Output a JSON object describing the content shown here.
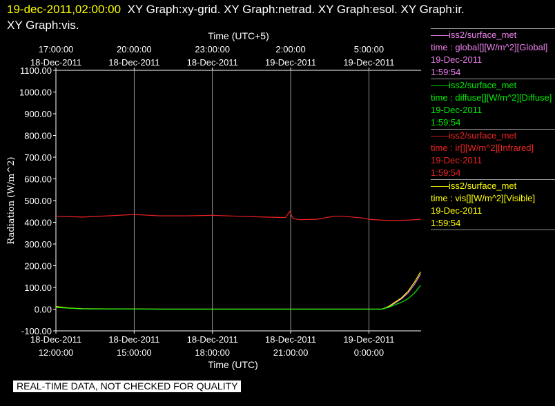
{
  "header": {
    "timestamp": "19-dec-2011,02:00:00",
    "title_line1": "XY Graph:xy-grid.  XY Graph:netrad.  XY Graph:esol.  XY Graph:ir.",
    "title_line2": "XY Graph:vis."
  },
  "legend": [
    {
      "source": "iss2/surface_met",
      "label": "time : global[][W/m^2][Global]",
      "date": "19-Dec-2011",
      "time": "1:59:54",
      "color": "#ee82ee"
    },
    {
      "source": "iss2/surface_met",
      "label": "time : diffuse[][W/m^2][Diffuse]",
      "date": "19-Dec-2011",
      "time": "1:59:54",
      "color": "#00ee00"
    },
    {
      "source": "iss2/surface_met",
      "label": "time : ir[][W/m^2][Infrared]",
      "date": "19-Dec-2011",
      "time": "1:59:54",
      "color": "#ee2222"
    },
    {
      "source": "iss2/surface_met",
      "label": "time : vis[][W/m^2][Visible]",
      "date": "19-Dec-2011",
      "time": "1:59:54",
      "color": "#ffff00"
    }
  ],
  "notice": "REAL-TIME DATA, NOT CHECKED FOR QUALITY",
  "chart_data": {
    "type": "line",
    "xlabel": "Time (UTC)",
    "x2label": "Time (UTC+5)",
    "ylabel": "Radiation (W/m^2)",
    "ylim": [
      -100,
      1100
    ],
    "yticks": [
      -100,
      0,
      100,
      200,
      300,
      400,
      500,
      600,
      700,
      800,
      900,
      1000,
      1100
    ],
    "ytick_labels": [
      "-100.00",
      "0.00",
      "100.00",
      "200.00",
      "300.00",
      "400.00",
      "500.00",
      "600.00",
      "700.00",
      "800.00",
      "900.00",
      "1000.00",
      "1100.00"
    ],
    "xlim": [
      "2011-12-18 12:00",
      "2011-12-19 02:00"
    ],
    "xticks_bottom": [
      {
        "date": "18-Dec-2011",
        "time": "12:00:00"
      },
      {
        "date": "18-Dec-2011",
        "time": "15:00:00"
      },
      {
        "date": "18-Dec-2011",
        "time": "18:00:00"
      },
      {
        "date": "18-Dec-2011",
        "time": "21:00:00"
      },
      {
        "date": "19-Dec-2011",
        "time": "0:00:00"
      }
    ],
    "xticks_top": [
      {
        "time": "17:00:00",
        "date": "18-Dec-2011"
      },
      {
        "time": "20:00:00",
        "date": "18-Dec-2011"
      },
      {
        "time": "23:00:00",
        "date": "18-Dec-2011"
      },
      {
        "time": "2:00:00",
        "date": "19-Dec-2011"
      },
      {
        "time": "5:00:00",
        "date": "19-Dec-2011"
      }
    ],
    "grid": "vertical",
    "series": [
      {
        "name": "ir",
        "color": "#ee2222",
        "x": [
          "2011-12-18 12:00",
          "2011-12-18 13:00",
          "2011-12-18 14:00",
          "2011-12-18 15:00",
          "2011-12-18 16:00",
          "2011-12-18 17:00",
          "2011-12-18 18:00",
          "2011-12-18 19:00",
          "2011-12-18 20:00",
          "2011-12-18 20:48",
          "2011-12-18 20:58",
          "2011-12-18 21:05",
          "2011-12-18 21:20",
          "2011-12-18 22:00",
          "2011-12-18 22:40",
          "2011-12-18 23:00",
          "2011-12-18 23:45",
          "2011-12-19 00:00",
          "2011-12-19 00:30",
          "2011-12-19 01:00",
          "2011-12-19 01:30",
          "2011-12-19 01:59"
        ],
        "y": [
          428,
          424,
          430,
          436,
          430,
          430,
          432,
          428,
          424,
          422,
          450,
          418,
          412,
          414,
          428,
          428,
          420,
          414,
          410,
          408,
          410,
          414
        ]
      },
      {
        "name": "global",
        "color": "#ee82ee",
        "x": [
          "2011-12-18 12:00",
          "2011-12-18 12:30",
          "2011-12-18 13:00",
          "2011-12-18 16:00",
          "2011-12-18 20:00",
          "2011-12-18 23:00",
          "2011-12-19 00:30",
          "2011-12-19 00:45",
          "2011-12-19 01:00",
          "2011-12-19 01:15",
          "2011-12-19 01:30",
          "2011-12-19 01:45",
          "2011-12-19 01:59"
        ],
        "y": [
          10,
          4,
          2,
          0,
          0,
          0,
          0,
          10,
          28,
          48,
          75,
          115,
          162
        ]
      },
      {
        "name": "vis",
        "color": "#ffff00",
        "x": [
          "2011-12-18 12:00",
          "2011-12-18 12:30",
          "2011-12-18 13:00",
          "2011-12-18 16:00",
          "2011-12-18 20:00",
          "2011-12-18 23:00",
          "2011-12-19 00:30",
          "2011-12-19 00:45",
          "2011-12-19 01:00",
          "2011-12-19 01:15",
          "2011-12-19 01:30",
          "2011-12-19 01:45",
          "2011-12-19 01:59"
        ],
        "y": [
          12,
          5,
          2,
          0,
          0,
          0,
          0,
          12,
          32,
          52,
          82,
          125,
          172
        ]
      },
      {
        "name": "diffuse",
        "color": "#00ee00",
        "x": [
          "2011-12-18 12:00",
          "2011-12-18 12:30",
          "2011-12-18 13:00",
          "2011-12-18 16:00",
          "2011-12-18 20:00",
          "2011-12-18 23:00",
          "2011-12-19 00:30",
          "2011-12-19 00:45",
          "2011-12-19 01:00",
          "2011-12-19 01:15",
          "2011-12-19 01:30",
          "2011-12-19 01:45",
          "2011-12-19 01:59"
        ],
        "y": [
          8,
          4,
          1,
          0,
          0,
          0,
          0,
          8,
          20,
          32,
          48,
          75,
          110
        ]
      }
    ]
  }
}
